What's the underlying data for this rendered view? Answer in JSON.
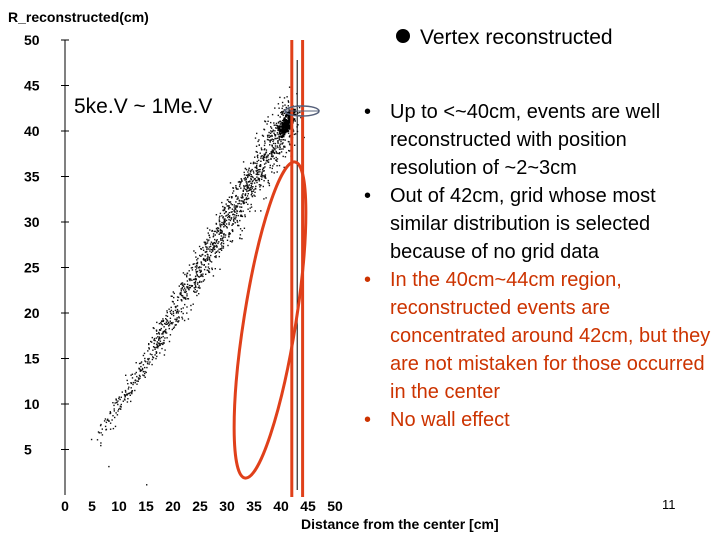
{
  "chart_data": {
    "type": "scatter",
    "title": "",
    "ylabel": "R_reconstructed(cm)",
    "xlabel": "Distance from the center [cm]",
    "xlim": [
      0,
      50
    ],
    "ylim": [
      0,
      50
    ],
    "xticks": [
      "0",
      "5",
      "10",
      "15",
      "20",
      "25",
      "30",
      "35",
      "40",
      "45",
      "50"
    ],
    "yticks": [
      "5",
      "10",
      "15",
      "20",
      "25",
      "30",
      "35",
      "40",
      "45",
      "50"
    ],
    "series": [
      {
        "name": "Vertex reconstructed",
        "description_points": "dense band along y = x from ~5cm to ~42cm, clustering near 42cm"
      }
    ],
    "legend": "top-right",
    "annotation_energy": "5ke.V ~ 1Me.V",
    "vertical_lines_cm": [
      42,
      44
    ],
    "black_line_cm": 43
  },
  "legend_label": "Vertex reconstructed",
  "bullets": [
    {
      "text": "Up to <~40cm, events are well reconstructed with position resolution of ~2~3cm",
      "color": "#000000"
    },
    {
      "text": "Out of 42cm, grid whose most similar distribution is selected because of no grid data",
      "color": "#000000"
    },
    {
      "text": "In the 40cm~44cm region, reconstructed events are concentrated around 42cm, but they are not mistaken for those occurred in the center",
      "color": "#cc3300"
    },
    {
      "text": "No wall effect",
      "color": "#cc3300"
    }
  ],
  "bullet_glyph": "•",
  "page_number": "11",
  "colors": {
    "accent": "#e0401a",
    "text": "#000000",
    "red_text": "#cc3300"
  }
}
